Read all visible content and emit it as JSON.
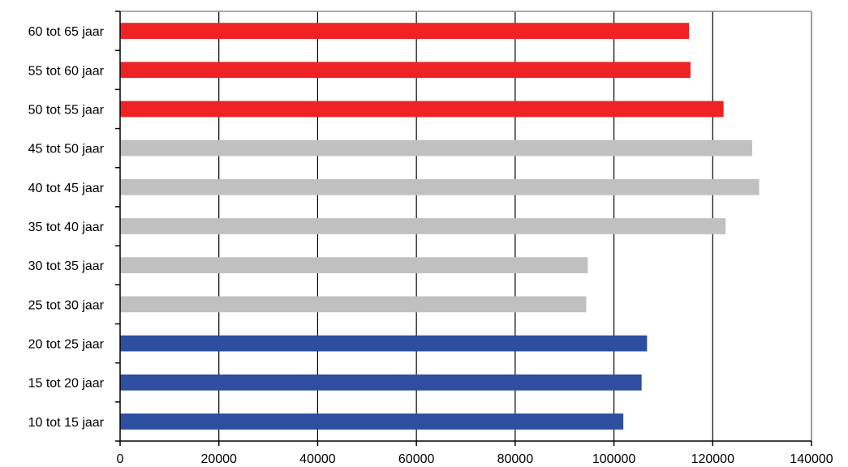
{
  "chart_data": {
    "type": "bar",
    "orientation": "horizontal",
    "title": "",
    "xlabel": "",
    "ylabel": "",
    "xlim": [
      0,
      140000
    ],
    "xticks": [
      0,
      20000,
      40000,
      60000,
      80000,
      100000,
      120000,
      140000
    ],
    "xtick_labels": [
      "0",
      "20000",
      "40000",
      "60000",
      "80000",
      "100000",
      "120000",
      "140000"
    ],
    "grid": "vertical",
    "legend": "none",
    "categories": [
      "60 tot 65 jaar",
      "55 tot 60 jaar",
      "50 tot 55 jaar",
      "45 tot 50 jaar",
      "40 tot 45 jaar",
      "35 tot 40 jaar",
      "30 tot 35 jaar",
      "25 tot 30 jaar",
      "20 tot 25 jaar",
      "15 tot 20 jaar",
      "10 tot 15 jaar"
    ],
    "values": [
      115200,
      115500,
      122200,
      128000,
      129400,
      122600,
      94700,
      94400,
      106700,
      105600,
      101900
    ],
    "bar_colors": [
      "#ee2224",
      "#ee2224",
      "#ee2224",
      "#c0c0c0",
      "#c0c0c0",
      "#c0c0c0",
      "#c0c0c0",
      "#c0c0c0",
      "#2e4fa0",
      "#2e4fa0",
      "#2e4fa0"
    ]
  }
}
